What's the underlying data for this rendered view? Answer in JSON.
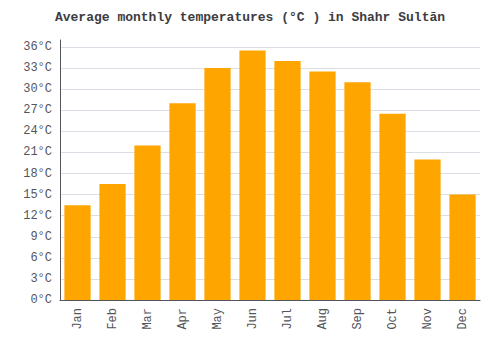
{
  "chart_data": {
    "type": "bar",
    "title": "Average monthly temperatures (°C ) in Shahr Sultān",
    "categories": [
      "Jan",
      "Feb",
      "Mar",
      "Apr",
      "May",
      "Jun",
      "Jul",
      "Aug",
      "Sep",
      "Oct",
      "Nov",
      "Dec"
    ],
    "values": [
      13.5,
      16.5,
      22,
      28,
      33,
      35.5,
      34,
      32.5,
      31,
      26.5,
      20,
      15
    ],
    "color": "#FFA500",
    "ylim": [
      0,
      37
    ],
    "yticks": [
      {
        "value": 0,
        "label": "0°C"
      },
      {
        "value": 3,
        "label": "3°C"
      },
      {
        "value": 6,
        "label": "6°C"
      },
      {
        "value": 9,
        "label": "9°C"
      },
      {
        "value": 12,
        "label": "12°C"
      },
      {
        "value": 15,
        "label": "15°C"
      },
      {
        "value": 18,
        "label": "18°C"
      },
      {
        "value": 21,
        "label": "21°C"
      },
      {
        "value": 24,
        "label": "24°C"
      },
      {
        "value": 27,
        "label": "27°C"
      },
      {
        "value": 30,
        "label": "30°C"
      },
      {
        "value": 33,
        "label": "33°C"
      },
      {
        "value": 36,
        "label": "36°C"
      }
    ],
    "grid": true
  }
}
